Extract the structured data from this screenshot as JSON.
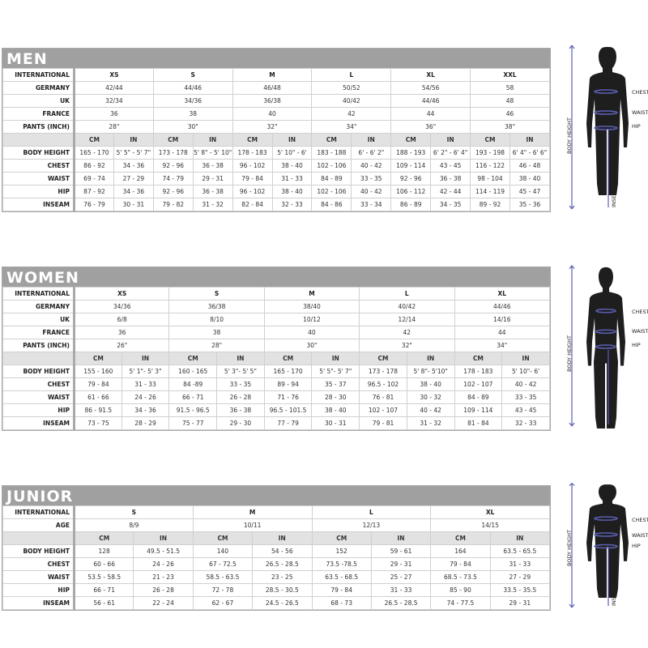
{
  "sections": [
    {
      "title": "MEN",
      "header_rows": [
        {
          "label": "INTERNATIONAL",
          "values": [
            "XS",
            "S",
            "M",
            "L",
            "XL",
            "XXL"
          ]
        },
        {
          "label": "GERMANY",
          "values": [
            "42/44",
            "44/46",
            "46/48",
            "50/52",
            "54/56",
            "58"
          ]
        },
        {
          "label": "UK",
          "values": [
            "32/34",
            "34/36",
            "36/38",
            "40/42",
            "44/46",
            "48"
          ]
        },
        {
          "label": "FRANCE",
          "values": [
            "36",
            "38",
            "40",
            "42",
            "44",
            "46"
          ]
        },
        {
          "label": "PANTS (INCH)",
          "values": [
            "28\"",
            "30\"",
            "32\"",
            "34\"",
            "36\"",
            "38\""
          ]
        }
      ],
      "units": [
        "CM",
        "IN"
      ],
      "measure_rows": [
        {
          "label": "BODY HEIGHT",
          "values": [
            "165 - 170",
            "5' 5\" - 5' 7\"",
            "173 - 178",
            "5' 8\" - 5' 10\"",
            "178 - 183",
            "5' 10\" - 6'",
            "183 - 188",
            "6' - 6' 2\"",
            "188 - 193",
            "6' 2\" - 6' 4\"",
            "193 - 198",
            "6' 4\" - 6' 6\""
          ]
        },
        {
          "label": "CHEST",
          "values": [
            "86 - 92",
            "34 - 36",
            "92 - 96",
            "36 - 38",
            "96 - 102",
            "38 - 40",
            "102 - 106",
            "40 - 42",
            "109 - 114",
            "43 - 45",
            "116 - 122",
            "46 - 48"
          ]
        },
        {
          "label": "WAIST",
          "values": [
            "69 - 74",
            "27 - 29",
            "74 - 79",
            "29 - 31",
            "79 - 84",
            "31 - 33",
            "84 - 89",
            "33 - 35",
            "92 - 96",
            "36 - 38",
            "98 - 104",
            "38 - 40"
          ]
        },
        {
          "label": "HIP",
          "values": [
            "87 - 92",
            "34 - 36",
            "92 - 96",
            "36 - 38",
            "96 - 102",
            "38 - 40",
            "102 - 106",
            "40 - 42",
            "106 - 112",
            "42 - 44",
            "114 - 119",
            "45 - 47"
          ]
        },
        {
          "label": "INSEAM",
          "values": [
            "76 - 79",
            "30 - 31",
            "79 - 82",
            "31 - 32",
            "82 - 84",
            "32 - 33",
            "84 - 86",
            "33 - 34",
            "86 - 89",
            "34 - 35",
            "89 - 92",
            "35 - 36"
          ]
        }
      ]
    },
    {
      "title": "WOMEN",
      "header_rows": [
        {
          "label": "INTERNATIONAL",
          "values": [
            "XS",
            "S",
            "M",
            "L",
            "XL"
          ]
        },
        {
          "label": "GERMANY",
          "values": [
            "34/36",
            "36/38",
            "38/40",
            "40/42",
            "44/46"
          ]
        },
        {
          "label": "UK",
          "values": [
            "6/8",
            "8/10",
            "10/12",
            "12/14",
            "14/16"
          ]
        },
        {
          "label": "FRANCE",
          "values": [
            "36",
            "38",
            "40",
            "42",
            "44"
          ]
        },
        {
          "label": "PANTS (INCH)",
          "values": [
            "26\"",
            "28\"",
            "30\"",
            "32\"",
            "34\""
          ]
        }
      ],
      "units": [
        "CM",
        "IN"
      ],
      "measure_rows": [
        {
          "label": "BODY HEIGHT",
          "values": [
            "155 - 160",
            "5' 1\"- 5' 3\"",
            "160 - 165",
            "5' 3\"- 5' 5\"",
            "165 - 170",
            "5' 5\"- 5' 7\"",
            "173 - 178",
            "5' 8\"- 5'10\"",
            "178 - 183",
            "5' 10\"- 6'"
          ]
        },
        {
          "label": "CHEST",
          "values": [
            "79 - 84",
            "31 - 33",
            "84 -89",
            "33 - 35",
            "89 - 94",
            "35 - 37",
            "96.5 - 102",
            "38 - 40",
            "102 - 107",
            "40 - 42"
          ]
        },
        {
          "label": "WAIST",
          "values": [
            "61 - 66",
            "24 - 26",
            "66 - 71",
            "26 - 28",
            "71 - 76",
            "28 - 30",
            "76 - 81",
            "30 - 32",
            "84 - 89",
            "33 - 35"
          ]
        },
        {
          "label": "HIP",
          "values": [
            "86 - 91.5",
            "34 - 36",
            "91.5 - 96.5",
            "36 - 38",
            "96.5 - 101.5",
            "38 - 40",
            "102 - 107",
            "40 - 42",
            "109 - 114",
            "43 - 45"
          ]
        },
        {
          "label": "INSEAM",
          "values": [
            "73 - 75",
            "28 - 29",
            "75 - 77",
            "29 - 30",
            "77 - 79",
            "30 - 31",
            "79 - 81",
            "31 - 32",
            "81 - 84",
            "32 - 33"
          ]
        }
      ]
    },
    {
      "title": "JUNIOR",
      "header_rows": [
        {
          "label": "INTERNATIONAL",
          "values": [
            "S",
            "M",
            "L",
            "XL"
          ]
        },
        {
          "label": "AGE",
          "values": [
            "8/9",
            "10/11",
            "12/13",
            "14/15"
          ]
        }
      ],
      "units": [
        "CM",
        "IN"
      ],
      "measure_rows": [
        {
          "label": "BODY HEIGHT",
          "values": [
            "128",
            "49.5 - 51.5",
            "140",
            "54 - 56",
            "152",
            "59 - 61",
            "164",
            "63.5 - 65.5"
          ]
        },
        {
          "label": "CHEST",
          "values": [
            "60 - 66",
            "24 - 26",
            "67 - 72.5",
            "26.5 - 28.5",
            "73.5 -78.5",
            "29 - 31",
            "79 - 84",
            "31 - 33"
          ]
        },
        {
          "label": "WAIST",
          "values": [
            "53.5 - 58.5",
            "21 - 23",
            "58.5 - 63.5",
            "23 - 25",
            "63.5 - 68.5",
            "25 - 27",
            "68.5 - 73.5",
            "27 - 29"
          ]
        },
        {
          "label": "HIP",
          "values": [
            "66 - 71",
            "26 - 28",
            "72 - 78",
            "28.5 - 30.5",
            "79 - 84",
            "31 - 33",
            "85 - 90",
            "33.5 - 35.5"
          ]
        },
        {
          "label": "INSEAM",
          "values": [
            "56 - 61",
            "22 - 24",
            "62 - 67",
            "24.5 - 26.5",
            "68 - 73",
            "26.5 - 28.5",
            "74 - 77.5",
            "29 - 31"
          ]
        }
      ]
    }
  ],
  "figure_labels": {
    "chest": "CHEST",
    "waist": "WAIST",
    "hip": "HIP",
    "body_height": "BODY HEIGHT",
    "inseam": "INSEAM"
  },
  "colors": {
    "header_bar": "#a0a0a0",
    "measure_line": "#5a5fb0",
    "silhouette": "#1e1e1e"
  }
}
